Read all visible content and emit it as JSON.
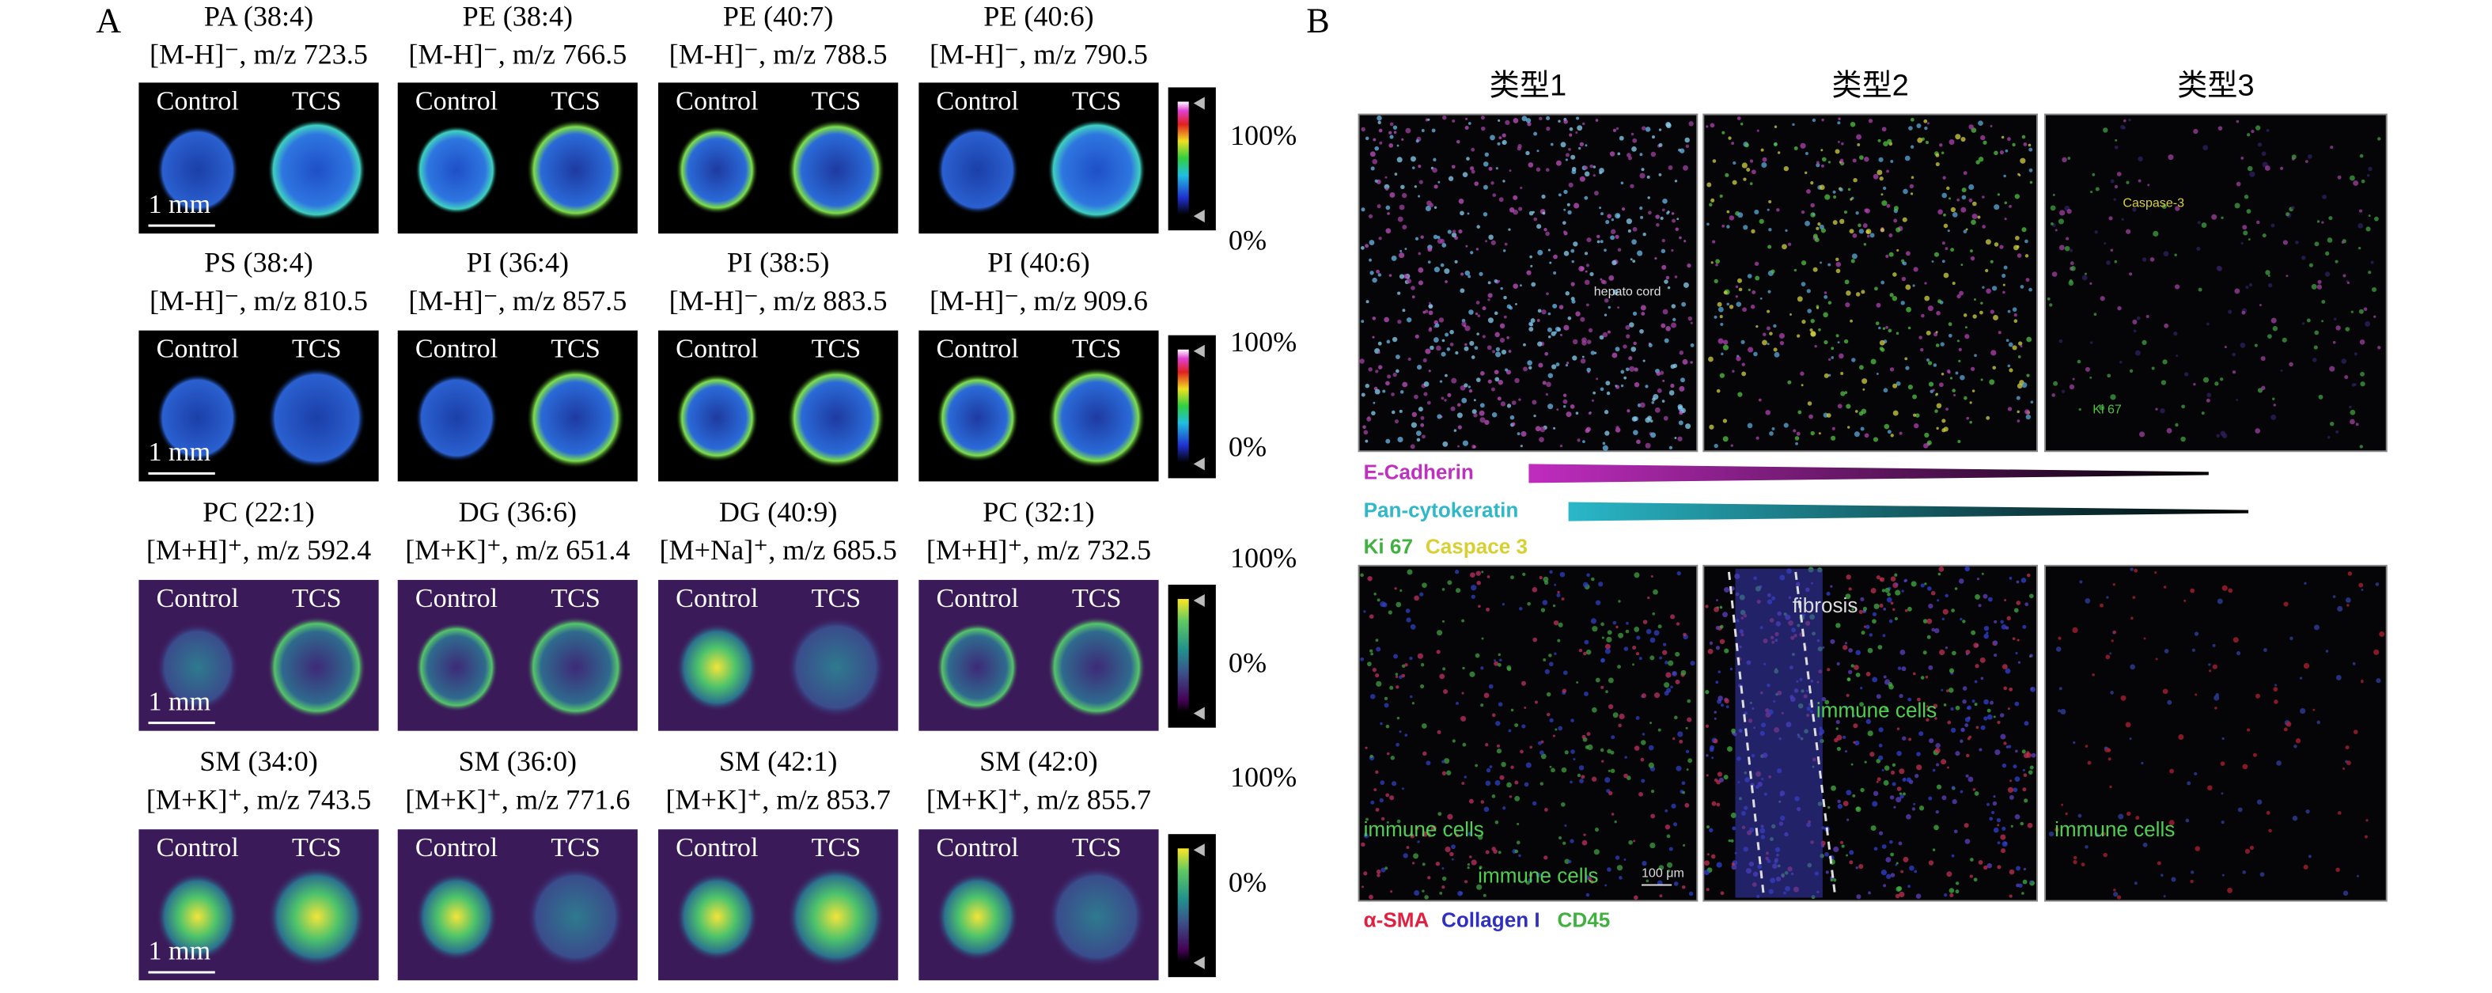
{
  "panel_a": {
    "label": "A",
    "control_label": "Control",
    "tcs_label": "TCS",
    "scale_bar": "1 mm",
    "colorbar_max": "100%",
    "colorbar_min": "0%",
    "rows": [
      {
        "panels": [
          {
            "lipid": "PA (38:4)",
            "ion": "[M-H]⁻, m/z 723.5"
          },
          {
            "lipid": "PE (38:4)",
            "ion": "[M-H]⁻, m/z 766.5"
          },
          {
            "lipid": "PE (40:7)",
            "ion": "[M-H]⁻, m/z 788.5"
          },
          {
            "lipid": "PE (40:6)",
            "ion": "[M-H]⁻, m/z 790.5"
          }
        ]
      },
      {
        "panels": [
          {
            "lipid": "PS (38:4)",
            "ion": "[M-H]⁻, m/z 810.5"
          },
          {
            "lipid": "PI (36:4)",
            "ion": "[M-H]⁻, m/z 857.5"
          },
          {
            "lipid": "PI (38:5)",
            "ion": "[M-H]⁻, m/z 883.5"
          },
          {
            "lipid": "PI (40:6)",
            "ion": "[M-H]⁻, m/z 909.6"
          }
        ]
      },
      {
        "panels": [
          {
            "lipid": "PC (22:1)",
            "ion": "[M+H]⁺, m/z 592.4"
          },
          {
            "lipid": "DG (36:6)",
            "ion": "[M+K]⁺, m/z 651.4"
          },
          {
            "lipid": "DG (40:9)",
            "ion": "[M+Na]⁺, m/z 685.5"
          },
          {
            "lipid": "PC (32:1)",
            "ion": "[M+H]⁺, m/z 732.5"
          }
        ]
      },
      {
        "panels": [
          {
            "lipid": "SM (34:0)",
            "ion": "[M+K]⁺, m/z 743.5"
          },
          {
            "lipid": "SM (36:0)",
            "ion": "[M+K]⁺, m/z 771.6"
          },
          {
            "lipid": "SM (42:1)",
            "ion": "[M+K]⁺, m/z 853.7"
          },
          {
            "lipid": "SM (42:0)",
            "ion": "[M+K]⁺, m/z 855.7"
          }
        ]
      }
    ]
  },
  "panel_b": {
    "label": "B",
    "columns": [
      "类型1",
      "类型2",
      "类型3"
    ],
    "legend_top": {
      "e_cadherin": "E-Cadherin",
      "pan_cytokeratin": "Pan-cytokeratin",
      "ki67": "Ki 67",
      "caspase": "Caspace 3"
    },
    "top_annotations": {
      "hepato_cord": "hepato cord",
      "caspase": "Caspase-3",
      "ki67": "Ki 67"
    },
    "bottom_annotations": {
      "fibrosis": "fibrosis",
      "immune_cells": "immune cells",
      "scale": "100 μm"
    },
    "legend_bottom": {
      "sma": "α-SMA",
      "collagen": "Collagen I",
      "cd45": "CD45"
    }
  }
}
